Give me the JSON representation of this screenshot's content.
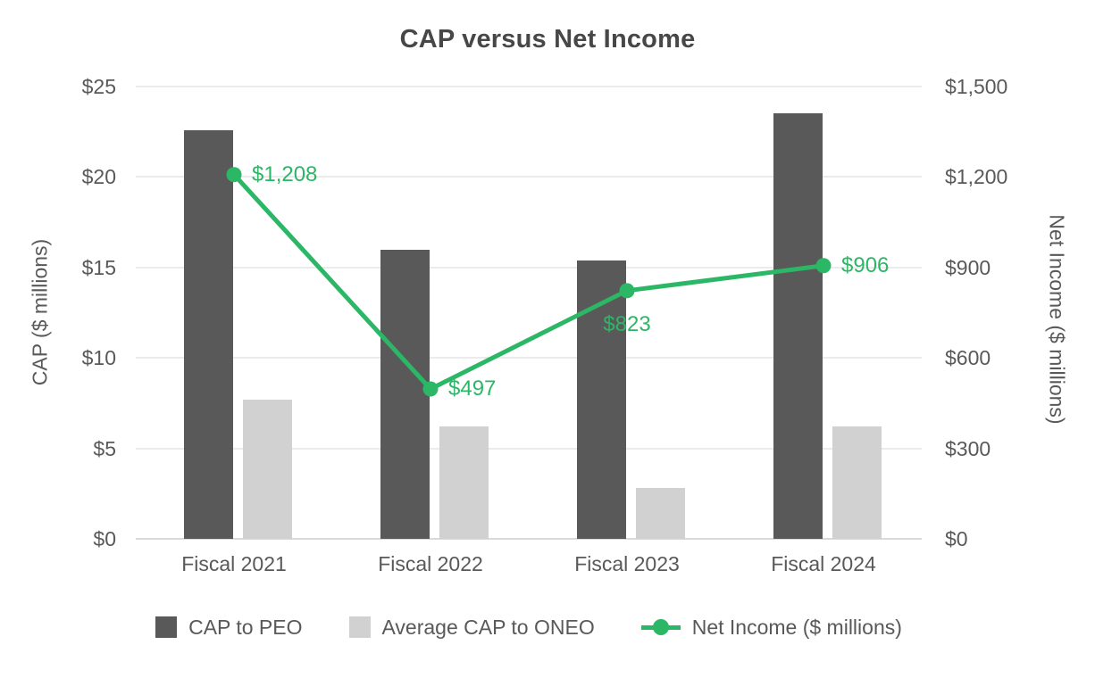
{
  "title": "CAP versus Net Income",
  "colors": {
    "accent_green": "#2bb766",
    "bar_dark": "#595959",
    "bar_light": "#d1d1d1",
    "text": "#595959",
    "title_text": "#474747",
    "gridline": "#ebebeb",
    "axis_line": "#d9d9d9"
  },
  "chart_data": {
    "type": "combo-bar-line",
    "title": "CAP versus Net Income",
    "categories": [
      "Fiscal 2021",
      "Fiscal 2022",
      "Fiscal 2023",
      "Fiscal 2024"
    ],
    "series": [
      {
        "name": "CAP to PEO",
        "type": "bar",
        "axis": "left",
        "color": "#595959",
        "values": [
          22.6,
          16.0,
          15.4,
          23.5
        ]
      },
      {
        "name": "Average CAP to ONEO",
        "type": "bar",
        "axis": "left",
        "color": "#d1d1d1",
        "values": [
          7.7,
          6.2,
          2.8,
          6.2
        ]
      },
      {
        "name": "Net Income ($ millions)",
        "type": "line",
        "axis": "right",
        "color": "#2bb766",
        "values": [
          1208,
          497,
          823,
          906
        ],
        "data_labels": [
          "$1,208",
          "$497",
          "$823",
          "$906"
        ],
        "data_label_positions": [
          "right",
          "right",
          "below",
          "right"
        ]
      }
    ],
    "left_axis": {
      "title": "CAP ($ millions)",
      "min": 0,
      "max": 25,
      "tick_step": 5,
      "tick_labels": [
        "$0",
        "$5",
        "$10",
        "$15",
        "$20",
        "$25"
      ]
    },
    "right_axis": {
      "title": "Net Income ($ millions)",
      "min": 0,
      "max": 1500,
      "tick_step": 300,
      "tick_labels": [
        "$0",
        "$300",
        "$600",
        "$900",
        "$1,200",
        "$1,500"
      ]
    },
    "grid": true,
    "legend_position": "bottom"
  }
}
